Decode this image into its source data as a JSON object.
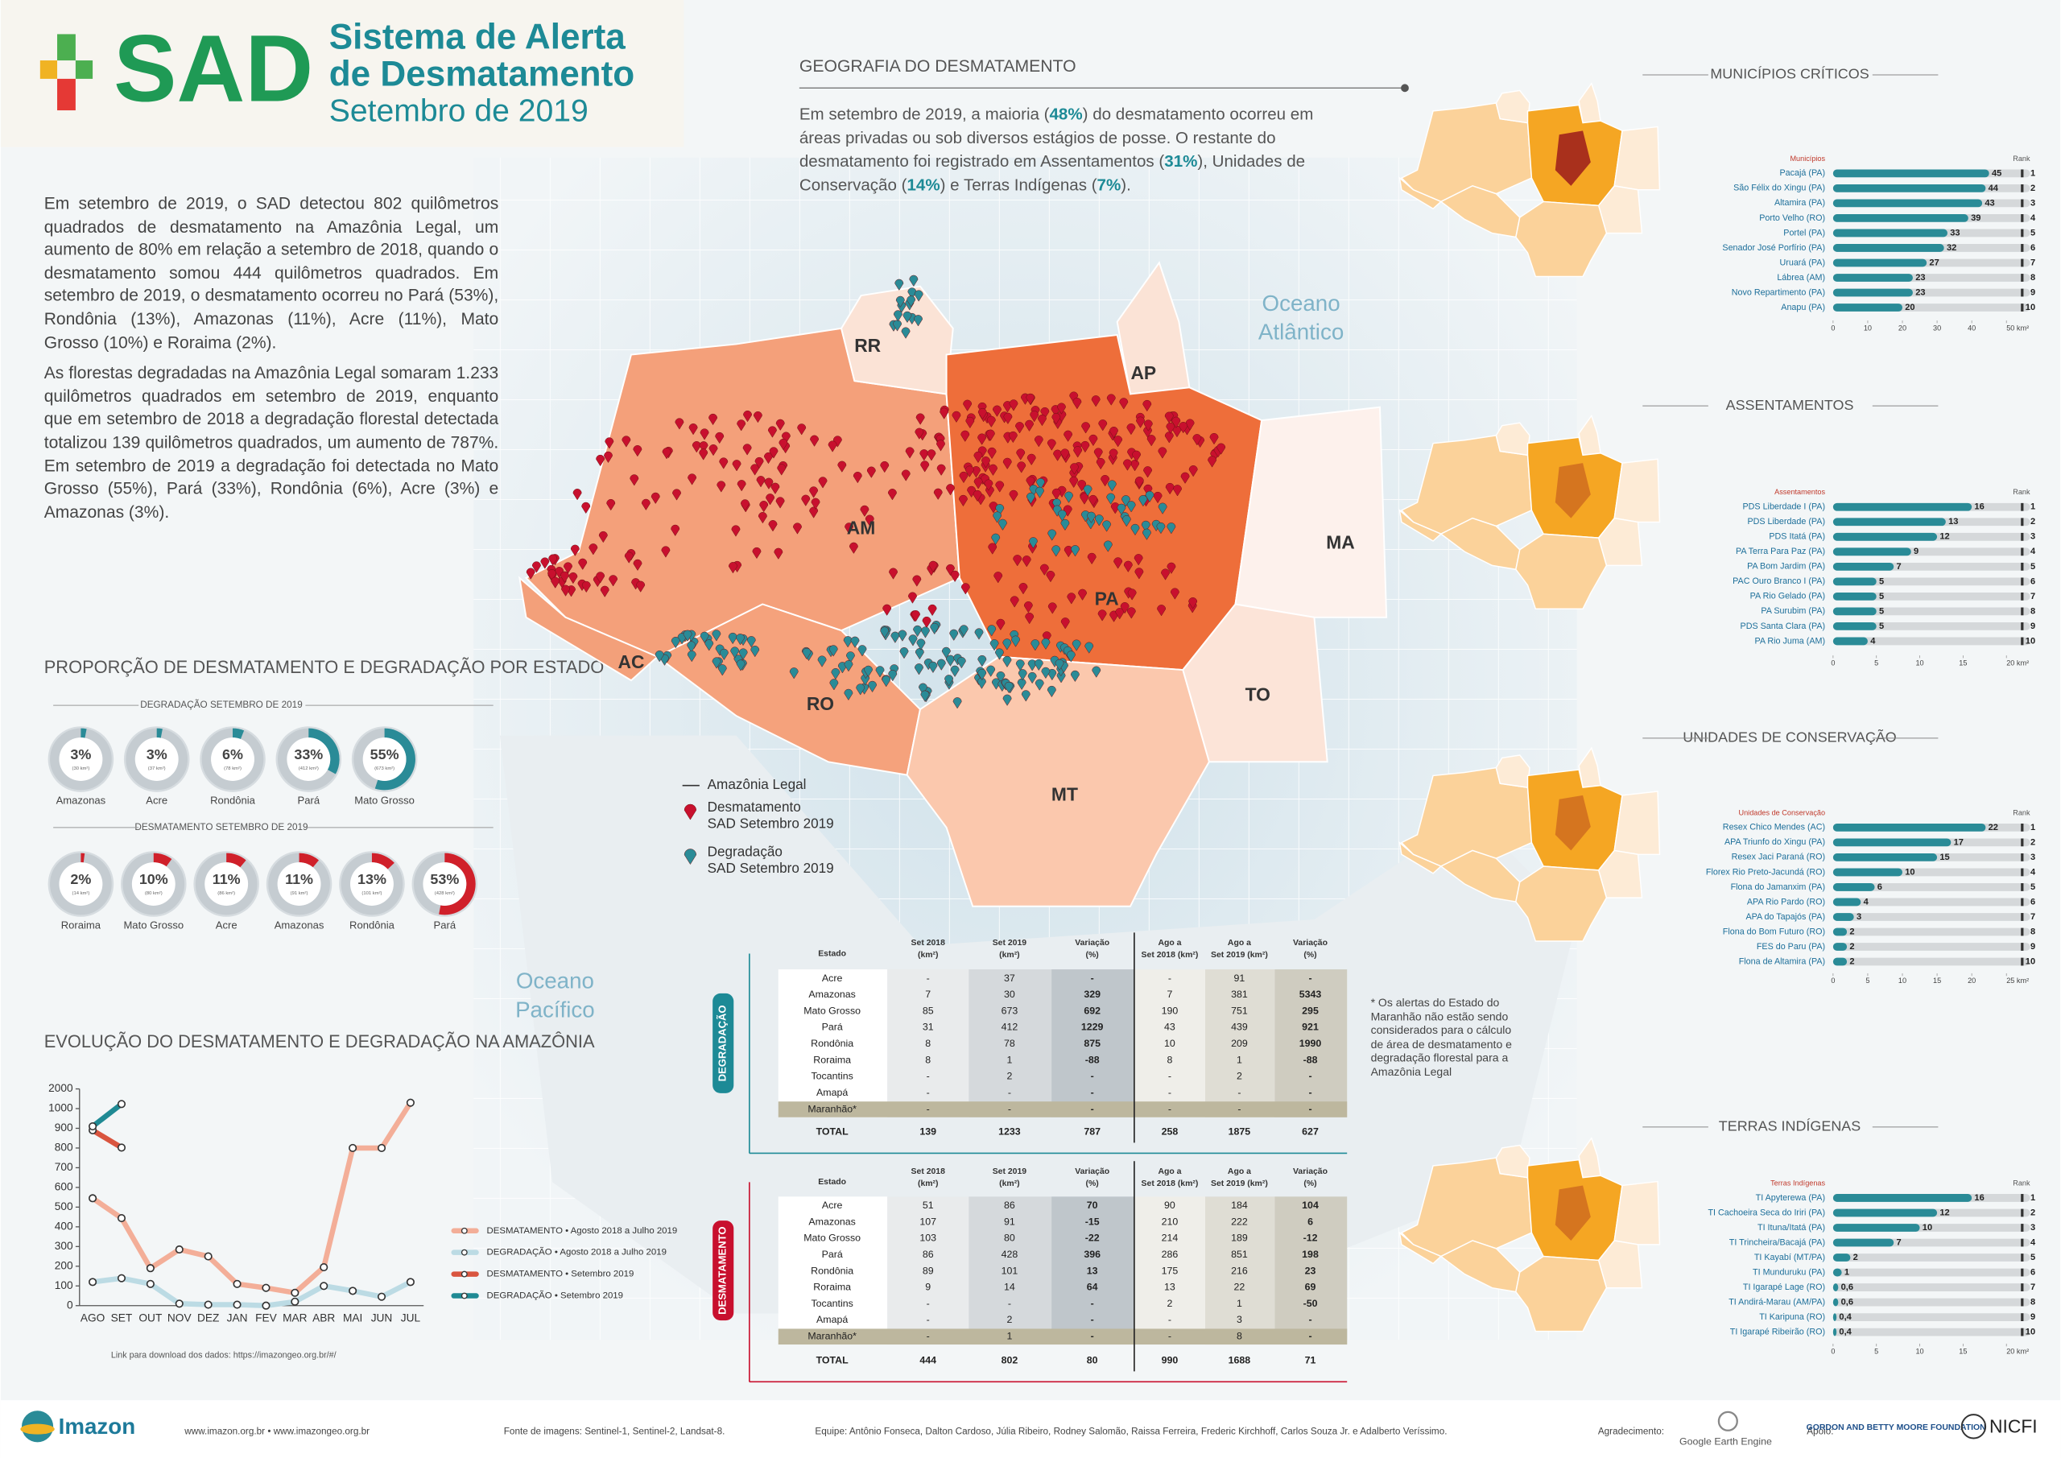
{
  "header": {
    "logo": "SAD",
    "title_line1": "Sistema de Alerta",
    "title_line2": "de Desmatamento",
    "subtitle": "Setembro de 2019"
  },
  "intro": {
    "paragraphs": [
      "Em setembro de 2019, o SAD detectou 802 quilômetros quadrados de desmatamento na Amazônia Legal, um aumento de 80% em relação a setembro de 2018, quando o desmatamento somou 444 quilômetros quadrados. Em setembro de 2019, o desmatamento ocorreu no Pará (53%), Rondônia (13%), Amazonas (11%), Acre (11%), Mato Grosso (10%) e Roraima (2%).",
      "As florestas degradadas na Amazônia Legal somaram 1.233 quilômetros quadrados em setembro de 2019, enquanto que em setembro de 2018 a degradação florestal detectada totalizou 139 quilômetros quadrados, um aumento de 787%. Em setembro de 2019 a degradação foi detectada no Mato Grosso (55%), Pará (33%), Rondônia (6%), Acre (3%) e Amazonas (3%)."
    ]
  },
  "geografia": {
    "title": "GEOGRAFIA DO DESMATAMENTO",
    "segments": [
      {
        "text": "Em setembro de 2019, a maioria ("
      },
      {
        "text": "48%",
        "bold": true
      },
      {
        "text": ") do desmatamento ocorreu em áreas privadas ou sob diversos estágios de posse. O restante do desmatamento foi registrado em  Assentamentos ("
      },
      {
        "text": "31%",
        "bold": true
      },
      {
        "text": "), Unidades de Conservação ("
      },
      {
        "text": "14%",
        "bold": true
      },
      {
        "text": ") e Terras Indígenas ("
      },
      {
        "text": "7%",
        "bold": true
      },
      {
        "text": ")."
      }
    ]
  },
  "map": {
    "states": [
      {
        "label": "AM"
      },
      {
        "label": "RR"
      },
      {
        "label": "AP"
      },
      {
        "label": "PA"
      },
      {
        "label": "MA"
      },
      {
        "label": "TO"
      },
      {
        "label": "AC"
      },
      {
        "label": "RO"
      },
      {
        "label": "MT"
      }
    ],
    "ocean_labels": [
      [
        "Oceano",
        "Atlântico"
      ],
      [
        "Oceano",
        "Pacífico"
      ]
    ],
    "legend": [
      {
        "lines": [
          "Amazônia Legal"
        ]
      },
      {
        "lines": [
          "Desmatamento",
          "SAD Setembro 2019"
        ],
        "color": "#c8102e"
      },
      {
        "lines": [
          "Degradação",
          "SAD Setembro 2019"
        ],
        "color": "#2a8b97"
      }
    ]
  },
  "proporcao_title": "PROPORÇÃO DE DESMATAMENTO E DEGRADAÇÃO POR ESTADO",
  "chart_data": [
    {
      "type": "donut",
      "title": "DEGRADAÇÃO SETEMBRO DE 2019",
      "color": "#2a8b97",
      "categories": [
        "Amazonas",
        "Acre",
        "Rondônia",
        "Pará",
        "Mato Grosso"
      ],
      "values": [
        3,
        3,
        6,
        33,
        55
      ],
      "value_labels": [
        "3%",
        "3%",
        "6%",
        "33%",
        "55%"
      ],
      "area_labels": [
        "(30 km²)",
        "(37 km²)",
        "(78 km²)",
        "(412 km²)",
        "(673 km²)"
      ]
    },
    {
      "type": "donut",
      "title": "DESMATAMENTO SETEMBRO DE 2019",
      "color": "#d0202a",
      "categories": [
        "Roraima",
        "Mato Grosso",
        "Acre",
        "Amazonas",
        "Rondônia",
        "Pará"
      ],
      "values": [
        2,
        10,
        11,
        11,
        13,
        53
      ],
      "value_labels": [
        "2%",
        "10%",
        "11%",
        "11%",
        "13%",
        "53%"
      ],
      "area_labels": [
        "(14 km²)",
        "(80 km²)",
        "(86 km²)",
        "(91 km²)",
        "(101 km²)",
        "(428 km²)"
      ]
    },
    {
      "type": "line",
      "title": "EVOLUÇÃO DO DESMATAMENTO E DEGRADAÇÃO NA AMAZÔNIA",
      "categories": [
        "AGO",
        "SET",
        "OUT",
        "NOV",
        "DEZ",
        "JAN",
        "FEV",
        "MAR",
        "ABR",
        "MAI",
        "JUN",
        "JUL"
      ],
      "ylim": [
        0,
        2000
      ],
      "yticks": [
        0,
        100,
        200,
        300,
        400,
        500,
        600,
        700,
        800,
        900,
        1000,
        2000
      ],
      "ybreak": [
        1000,
        2000
      ],
      "series": [
        {
          "name": "DESMATAMENTO • Agosto 2018 a Julho 2019",
          "color": "#f3ae98",
          "values": [
            545,
            444,
            190,
            285,
            250,
            110,
            90,
            65,
            195,
            800,
            800,
            1300
          ]
        },
        {
          "name": "DEGRADAÇÃO • Agosto 2018 a Julho 2019",
          "color": "#bcdbe4",
          "values": [
            120,
            139,
            110,
            10,
            5,
            5,
            0,
            20,
            100,
            75,
            45,
            120
          ]
        },
        {
          "name": "DESMATAMENTO • Setembro 2019",
          "color": "#d9553f",
          "values": [
            890,
            802,
            null,
            null,
            null,
            null,
            null,
            null,
            null,
            null,
            null,
            null
          ]
        },
        {
          "name": "DEGRADAÇÃO • Setembro 2019",
          "color": "#1f8a94",
          "values": [
            910,
            1233,
            null,
            null,
            null,
            null,
            null,
            null,
            null,
            null,
            null,
            null
          ]
        }
      ],
      "note": "Link para download dos dados: https://imazongeo.org.br/#/"
    },
    {
      "type": "barh",
      "title": "MUNICÍPIOS CRÍTICOS",
      "category_label": "Municípios",
      "rank_label": "Rank",
      "color": "#2a8b97",
      "categories": [
        "Pacajá (PA)",
        "São Félix do Xingu (PA)",
        "Altamira (PA)",
        "Porto Velho (RO)",
        "Portel (PA)",
        "Senador José Porfírio (PA)",
        "Uruará (PA)",
        "Lábrea (AM)",
        "Novo Repartimento (PA)",
        "Anapu (PA)"
      ],
      "values": [
        45,
        44,
        43,
        39,
        33,
        32,
        27,
        23,
        23,
        20
      ],
      "ranks": [
        1,
        2,
        3,
        4,
        5,
        6,
        7,
        8,
        9,
        10
      ],
      "xlim": [
        0,
        50
      ],
      "xticks": [
        0,
        10,
        20,
        30,
        40,
        {
          "value": 50,
          "label": "50 km²"
        }
      ]
    },
    {
      "type": "barh",
      "title": "ASSENTAMENTOS",
      "category_label": "Assentamentos",
      "rank_label": "Rank",
      "color": "#2a8b97",
      "categories": [
        "PDS Liberdade I (PA)",
        "PDS Liberdade (PA)",
        "PDS Itatá (PA)",
        "PA Terra Para Paz (PA)",
        "PA Bom Jardim (PA)",
        "PAC Ouro Branco I (PA)",
        "PA Rio Gelado (PA)",
        "PA Surubim (PA)",
        "PDS Santa Clara (PA)",
        "PA Rio Juma (AM)"
      ],
      "values": [
        16,
        13,
        12,
        9,
        7,
        5,
        5,
        5,
        5,
        4
      ],
      "ranks": [
        1,
        2,
        3,
        4,
        5,
        6,
        7,
        8,
        9,
        10
      ],
      "xlim": [
        0,
        20
      ],
      "xticks": [
        0,
        5,
        10,
        15,
        {
          "value": 20,
          "label": "20 km²"
        }
      ]
    },
    {
      "type": "barh",
      "title": "UNIDADES DE CONSERVAÇÃO",
      "category_label": "Unidades de Conservação",
      "rank_label": "Rank",
      "color": "#2a8b97",
      "categories": [
        "Resex Chico Mendes (AC)",
        "APA Triunfo do Xingu (PA)",
        "Resex Jaci Paraná (RO)",
        "Florex Rio Preto-Jacundá (RO)",
        "Flona do Jamanxim (PA)",
        "APA Rio Pardo (RO)",
        "APA do Tapajós (PA)",
        "Flona do Bom Futuro (RO)",
        "FES do Paru (PA)",
        "Flona de Altamira (PA)"
      ],
      "values": [
        22,
        17,
        15,
        10,
        6,
        4,
        3,
        2,
        2,
        2
      ],
      "ranks": [
        1,
        2,
        3,
        4,
        5,
        6,
        7,
        8,
        9,
        10
      ],
      "xlim": [
        0,
        25
      ],
      "xticks": [
        0,
        5,
        10,
        15,
        20,
        {
          "value": 25,
          "label": "25 km²"
        }
      ]
    },
    {
      "type": "barh",
      "title": "TERRAS INDÍGENAS",
      "category_label": "Terras Indígenas",
      "rank_label": "Rank",
      "color": "#2a8b97",
      "categories": [
        "TI Apyterewa (PA)",
        "TI Cachoeira Seca do Iriri (PA)",
        "TI Ituna/Itatá (PA)",
        "TI Trincheira/Bacajá (PA)",
        "TI Kayabí (MT/PA)",
        "TI Munduruku (PA)",
        "TI Igarapé Lage (RO)",
        "TI Andirá-Marau (AM/PA)",
        "TI Karipuna (RO)",
        "TI Igarapé Ribeirão (RO)"
      ],
      "values": [
        16,
        12,
        10,
        7,
        2,
        1,
        0.6,
        0.6,
        0.4,
        0.4
      ],
      "value_labels": [
        "16",
        "12",
        "10",
        "7",
        "2",
        "1",
        "0,6",
        "0,6",
        "0,4",
        "0,4"
      ],
      "ranks": [
        1,
        2,
        3,
        4,
        5,
        6,
        7,
        8,
        9,
        10
      ],
      "xlim": [
        0,
        20
      ],
      "xticks": [
        0,
        5,
        10,
        15,
        {
          "value": 20,
          "label": "20 km²"
        }
      ]
    }
  ],
  "tables": [
    {
      "side_label": "DEGRADAÇÃO",
      "header": [
        [
          "Estado"
        ],
        [
          "Set 2018",
          "(km²)"
        ],
        [
          "Set 2019",
          "(km²)"
        ],
        [
          "Variação",
          "(%)"
        ],
        [
          "Ago a",
          "Set 2018 (km²)"
        ],
        [
          "Ago a",
          "Set 2019 (km²)"
        ],
        [
          "Variação",
          "(%)"
        ]
      ],
      "rows": [
        [
          "Acre",
          "-",
          "37",
          "-",
          "-",
          "91",
          "-"
        ],
        [
          "Amazonas",
          "7",
          "30",
          "329",
          "7",
          "381",
          "5343"
        ],
        [
          "Mato Grosso",
          "85",
          "673",
          "692",
          "190",
          "751",
          "295"
        ],
        [
          "Pará",
          "31",
          "412",
          "1229",
          "43",
          "439",
          "921"
        ],
        [
          "Rondônia",
          "8",
          "78",
          "875",
          "10",
          "209",
          "1990"
        ],
        [
          "Roraima",
          "8",
          "1",
          "-88",
          "8",
          "1",
          "-88"
        ],
        [
          "Tocantins",
          "-",
          "2",
          "-",
          "-",
          "2",
          "-"
        ],
        [
          "Amapá",
          "-",
          "-",
          "-",
          "-",
          "-",
          "-"
        ],
        [
          "Maranhão*",
          "-",
          "-",
          "-",
          "-",
          "-",
          "-"
        ]
      ],
      "total": [
        "TOTAL",
        "139",
        "1233",
        "787",
        "258",
        "1875",
        "627"
      ]
    },
    {
      "side_label": "DESMATAMENTO",
      "header": [
        [
          "Estado"
        ],
        [
          "Set 2018",
          "(km²)"
        ],
        [
          "Set 2019",
          "(km²)"
        ],
        [
          "Variação",
          "(%)"
        ],
        [
          "Ago a",
          "Set 2018 (km²)"
        ],
        [
          "Ago a",
          "Set 2019 (km²)"
        ],
        [
          "Variação",
          "(%)"
        ]
      ],
      "rows": [
        [
          "Acre",
          "51",
          "86",
          "70",
          "90",
          "184",
          "104"
        ],
        [
          "Amazonas",
          "107",
          "91",
          "-15",
          "210",
          "222",
          "6"
        ],
        [
          "Mato Grosso",
          "103",
          "80",
          "-22",
          "214",
          "189",
          "-12"
        ],
        [
          "Pará",
          "86",
          "428",
          "396",
          "286",
          "851",
          "198"
        ],
        [
          "Rondônia",
          "89",
          "101",
          "13",
          "175",
          "216",
          "23"
        ],
        [
          "Roraima",
          "9",
          "14",
          "64",
          "13",
          "22",
          "69"
        ],
        [
          "Tocantins",
          "-",
          "-",
          "-",
          "2",
          "1",
          "-50"
        ],
        [
          "Amapá",
          "-",
          "2",
          "-",
          "-",
          "3",
          "-"
        ],
        [
          "Maranhão*",
          "-",
          "1",
          "-",
          "-",
          "8",
          "-"
        ]
      ],
      "total": [
        "TOTAL",
        "444",
        "802",
        "80",
        "990",
        "1688",
        "71"
      ]
    }
  ],
  "table_note": "* Os alertas do Estado do Maranhão não estão sendo considerados para o cálculo de área de desmatamento e degradação florestal para a Amazônia Legal",
  "footer": {
    "brand": "Imazon",
    "sites": "www.imazon.org.br • www.imazongeo.org.br",
    "source": "Fonte de imagens: Sentinel-1, Sentinel-2, Landsat-8.",
    "team": "Equipe: Antônio Fonseca, Dalton Cardoso, Júlia Ribeiro, Rodney Salomão, Raissa Ferreira, Frederic Kirchhoff, Carlos Souza Jr. e Adalberto Veríssimo.",
    "thanks_label": "Agradecimento:",
    "thanks": "Google Earth Engine",
    "support_label": "Apoio:",
    "support1": "GORDON AND BETTY MOORE FOUNDATION",
    "support2": "NICFI"
  }
}
